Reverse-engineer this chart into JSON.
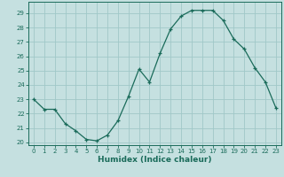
{
  "x": [
    0,
    1,
    2,
    3,
    4,
    5,
    6,
    7,
    8,
    9,
    10,
    11,
    12,
    13,
    14,
    15,
    16,
    17,
    18,
    19,
    20,
    21,
    22,
    23
  ],
  "y": [
    23,
    22.3,
    22.3,
    21.3,
    20.8,
    20.2,
    20.1,
    20.5,
    21.5,
    23.2,
    25.1,
    24.2,
    26.2,
    27.9,
    28.8,
    29.2,
    29.2,
    29.2,
    28.5,
    27.2,
    26.5,
    25.2,
    24.2,
    22.4
  ],
  "line_color": "#1a6b5a",
  "marker": "+",
  "bg_color": "#c5e0e0",
  "grid_color": "#a0c8c8",
  "xlabel": "Humidex (Indice chaleur)",
  "ylim": [
    19.8,
    29.8
  ],
  "yticks": [
    20,
    21,
    22,
    23,
    24,
    25,
    26,
    27,
    28,
    29
  ],
  "xticks": [
    0,
    1,
    2,
    3,
    4,
    5,
    6,
    7,
    8,
    9,
    10,
    11,
    12,
    13,
    14,
    15,
    16,
    17,
    18,
    19,
    20,
    21,
    22,
    23
  ],
  "tick_color": "#1a6b5a",
  "axis_color": "#1a6b5a",
  "tick_fontsize": 5.0,
  "xlabel_fontsize": 6.5
}
